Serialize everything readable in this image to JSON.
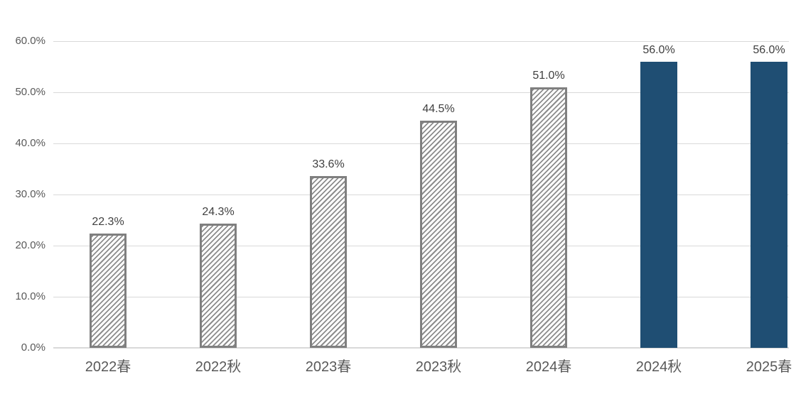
{
  "chart_data": {
    "type": "bar",
    "title": "",
    "xlabel": "",
    "ylabel": "",
    "categories": [
      "2022春",
      "2022秋",
      "2023春",
      "2023秋",
      "2024春",
      "2024秋",
      "2025春"
    ],
    "values": [
      22.3,
      24.3,
      33.6,
      44.5,
      51.0,
      56.0,
      56.0
    ],
    "data_labels": [
      "22.3%",
      "24.3%",
      "33.6%",
      "44.5%",
      "51.0%",
      "56.0%",
      "56.0%"
    ],
    "bar_styles": [
      "hatched",
      "hatched",
      "hatched",
      "hatched",
      "hatched",
      "solid",
      "solid"
    ],
    "ylim": [
      0,
      60
    ],
    "y_ticks": [
      "60.0%",
      "50.0%",
      "40.0%",
      "30.0%",
      "20.0%",
      "10.0%",
      "0.0%"
    ],
    "y_tick_values": [
      60,
      50,
      40,
      30,
      20,
      10,
      0
    ],
    "grid": "horizontal",
    "legend": "none",
    "colors": {
      "solid_bar": "#1F4E73",
      "hatch_stroke": "#8C8C8C",
      "hatch_fill": "#FFFFFF",
      "hatch_border": "#7F7F7F",
      "gridline": "#D9D9D9",
      "axis_line": "#D9D9D9",
      "tick_label": "#595959",
      "data_label": "#404040",
      "background": "#FFFFFF"
    }
  }
}
